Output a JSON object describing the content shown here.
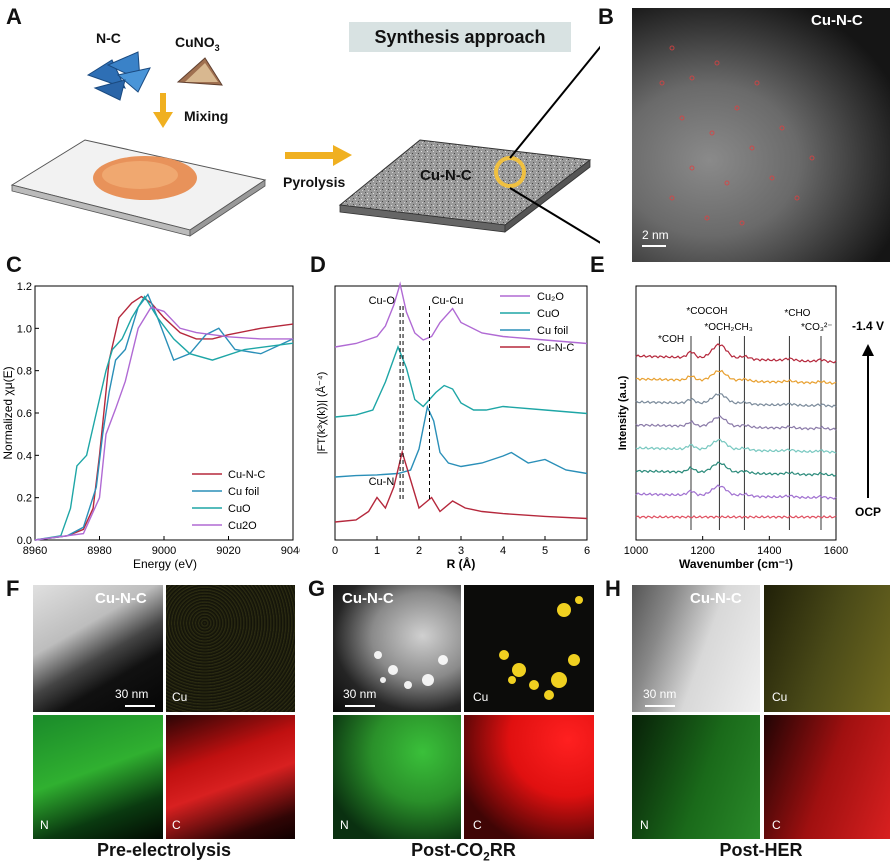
{
  "panels": {
    "A": {
      "letter": "A",
      "nc_label": "N-C",
      "cuno3_label": "CuNO",
      "cuno3_sub": "3",
      "mixing_label": "Mixing",
      "synthesis_label": "Synthesis approach",
      "pyrolysis_label": "Pyrolysis",
      "cunc_label": "Cu-N-C"
    },
    "B": {
      "letter": "B",
      "title": "Cu-N-C",
      "scale": "2 nm"
    },
    "C": {
      "letter": "C",
      "ylabel": "Normalized χμ(E)",
      "xlabel": "Energy (eV)",
      "xticks": [
        "8960",
        "8980",
        "9000",
        "9020",
        "9040"
      ],
      "yticks": [
        "0.0",
        "0.2",
        "0.4",
        "0.6",
        "0.8",
        "1.0",
        "1.2"
      ],
      "legend": [
        "Cu-N-C",
        "Cu foil",
        "CuO",
        "Cu2O"
      ]
    },
    "D": {
      "letter": "D",
      "ylabel": "|FT(k³χ(k))| (Å⁻⁴)",
      "xlabel": "R (Å)",
      "xticks": [
        "0",
        "1",
        "2",
        "3",
        "4",
        "5",
        "6"
      ],
      "annot_cuo": "Cu-O",
      "annot_cucu": "Cu-Cu",
      "annot_cun": "Cu-N",
      "legend": [
        "Cu₂O",
        "CuO",
        "Cu foil",
        "Cu-N-C"
      ]
    },
    "E": {
      "letter": "E",
      "ylabel": "Intensity (a.u.)",
      "xlabel": "Wavenumber (cm⁻¹)",
      "xticks": [
        "1000",
        "1200",
        "1400",
        "1600"
      ],
      "peaks": [
        "*COH",
        "*COCOH",
        "*OCH₂CH₃",
        "*CHO",
        "*CO₃²⁻"
      ],
      "top_label": "-1.4 V",
      "bottom_label": "OCP"
    },
    "F": {
      "letter": "F",
      "title": "Cu-N-C",
      "scale": "30 nm",
      "cu": "Cu",
      "n": "N",
      "c": "C",
      "caption": "Pre-electrolysis"
    },
    "G": {
      "letter": "G",
      "title": "Cu-N-C",
      "scale": "30 nm",
      "cu": "Cu",
      "n": "N",
      "c": "C",
      "caption_pre": "Post-CO",
      "caption_sub": "2",
      "caption_post": "RR"
    },
    "H": {
      "letter": "H",
      "title": "Cu-N-C",
      "scale": "30 nm",
      "cu": "Cu",
      "n": "N",
      "c": "C",
      "caption": "Post-HER"
    }
  },
  "chart_data": [
    {
      "type": "line",
      "panel": "C",
      "title": "",
      "xlabel": "Energy (eV)",
      "ylabel": "Normalized χμ(E)",
      "xlim": [
        8960,
        9040
      ],
      "ylim": [
        0.0,
        1.2
      ],
      "series": [
        {
          "name": "Cu-N-C",
          "color": "#b5283c",
          "x": [
            8960,
            8970,
            8975,
            8978,
            8980,
            8983,
            8986,
            8990,
            8993,
            8996,
            9000,
            9005,
            9010,
            9015,
            9020,
            9030,
            9040
          ],
          "y": [
            0.0,
            0.02,
            0.05,
            0.15,
            0.4,
            0.85,
            1.05,
            1.12,
            1.15,
            1.12,
            1.05,
            0.98,
            0.95,
            0.95,
            0.97,
            1.0,
            1.02
          ]
        },
        {
          "name": "Cu foil",
          "color": "#2a8fb8",
          "x": [
            8960,
            8970,
            8975,
            8979,
            8981,
            8983,
            8985,
            8988,
            8992,
            8995,
            8998,
            9003,
            9008,
            9013,
            9017,
            9022,
            9030,
            9040
          ],
          "y": [
            0.0,
            0.02,
            0.06,
            0.25,
            0.5,
            0.7,
            0.85,
            0.9,
            1.1,
            1.16,
            1.05,
            0.85,
            0.88,
            0.97,
            1.0,
            0.9,
            0.88,
            0.95
          ]
        },
        {
          "name": "CuO",
          "color": "#1ea6a6",
          "x": [
            8960,
            8968,
            8971,
            8973,
            8976,
            8979,
            8982,
            8984,
            8987,
            8990,
            8994,
            8998,
            9003,
            9008,
            9015,
            9025,
            9040
          ],
          "y": [
            0.0,
            0.02,
            0.15,
            0.35,
            0.4,
            0.6,
            0.8,
            0.9,
            0.95,
            1.05,
            1.15,
            1.05,
            0.95,
            0.88,
            0.85,
            0.9,
            0.93
          ]
        },
        {
          "name": "Cu2O",
          "color": "#b06ad4",
          "x": [
            8960,
            8975,
            8980,
            8982,
            8985,
            8988,
            8992,
            8996,
            9000,
            9005,
            9010,
            9020,
            9030,
            9040
          ],
          "y": [
            0.0,
            0.03,
            0.2,
            0.5,
            0.62,
            0.75,
            1.0,
            1.1,
            1.08,
            1.0,
            0.98,
            0.96,
            0.95,
            0.95
          ]
        }
      ]
    },
    {
      "type": "line",
      "panel": "D",
      "title": "",
      "xlabel": "R (Å)",
      "ylabel": "|FT(k³χ(k))| (Å⁻⁴)",
      "xlim": [
        0,
        6
      ],
      "series": [
        {
          "name": "Cu₂O",
          "color": "#b06ad4",
          "x": [
            0,
            0.5,
            1.0,
            1.2,
            1.4,
            1.55,
            1.7,
            1.9,
            2.1,
            2.3,
            2.5,
            2.8,
            3.0,
            3.5,
            4.0,
            5.0,
            6.0
          ],
          "y": [
            0,
            0.05,
            0.15,
            0.3,
            0.6,
            0.9,
            0.5,
            0.2,
            0.1,
            0.15,
            0.35,
            0.55,
            0.35,
            0.2,
            0.15,
            0.1,
            0.05
          ]
        },
        {
          "name": "CuO",
          "color": "#1ea6a6",
          "x": [
            0,
            0.5,
            0.9,
            1.2,
            1.5,
            1.7,
            1.9,
            2.1,
            2.4,
            2.6,
            2.8,
            3.0,
            3.3,
            3.6,
            4.0,
            5.0,
            6.0
          ],
          "y": [
            0,
            0.03,
            0.1,
            0.5,
            1.0,
            0.7,
            0.25,
            0.15,
            0.35,
            0.45,
            0.4,
            0.2,
            0.1,
            0.1,
            0.15,
            0.1,
            0.05
          ]
        },
        {
          "name": "Cu foil",
          "color": "#2a8fb8",
          "x": [
            0,
            0.5,
            1.0,
            1.5,
            1.8,
            2.0,
            2.2,
            2.35,
            2.5,
            2.7,
            3.0,
            3.5,
            4.0,
            4.2,
            4.6,
            5.0,
            5.5,
            6.0
          ],
          "y": [
            0,
            0.02,
            0.03,
            0.05,
            0.1,
            0.4,
            1.0,
            0.8,
            0.35,
            0.2,
            0.15,
            0.2,
            0.3,
            0.35,
            0.2,
            0.25,
            0.1,
            0.05
          ]
        },
        {
          "name": "Cu-N-C",
          "color": "#b5283c",
          "x": [
            0,
            0.5,
            0.8,
            1.0,
            1.2,
            1.4,
            1.6,
            1.8,
            2.0,
            2.3,
            2.5,
            2.8,
            3.1,
            3.5,
            4.0,
            5.0,
            6.0
          ],
          "y": [
            0,
            0.03,
            0.15,
            0.35,
            0.2,
            0.5,
            1.0,
            0.6,
            0.2,
            0.35,
            0.15,
            0.3,
            0.2,
            0.15,
            0.12,
            0.08,
            0.05
          ]
        }
      ]
    },
    {
      "type": "line",
      "panel": "E",
      "title": "",
      "xlabel": "Wavenumber (cm⁻¹)",
      "ylabel": "Intensity (a.u.)",
      "xlim": [
        1000,
        1600
      ],
      "peak_positions": [
        1165,
        1250,
        1325,
        1460,
        1555
      ],
      "series": [
        {
          "name": "-1.4 V",
          "color": "#b5283c"
        },
        {
          "name": "",
          "color": "#e8a030"
        },
        {
          "name": "",
          "color": "#7a8a9a"
        },
        {
          "name": "",
          "color": "#8a7aa8"
        },
        {
          "name": "",
          "color": "#78c8c0"
        },
        {
          "name": "",
          "color": "#2a8a7a"
        },
        {
          "name": "",
          "color": "#a070d0"
        },
        {
          "name": "OCP",
          "color": "#e05060"
        }
      ]
    }
  ]
}
